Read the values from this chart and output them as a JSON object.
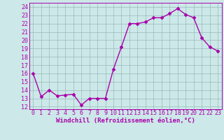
{
  "x": [
    0,
    1,
    2,
    3,
    4,
    5,
    6,
    7,
    8,
    9,
    10,
    11,
    12,
    13,
    14,
    15,
    16,
    17,
    18,
    19,
    20,
    21,
    22,
    23
  ],
  "y": [
    16.0,
    13.2,
    14.0,
    13.3,
    13.4,
    13.5,
    12.2,
    13.0,
    13.0,
    13.0,
    16.5,
    19.2,
    22.0,
    22.0,
    22.2,
    22.7,
    22.7,
    23.2,
    23.8,
    23.1,
    22.7,
    20.3,
    19.2,
    18.7
  ],
  "line_color": "#aa00aa",
  "marker": "D",
  "marker_size": 2.5,
  "bg_color": "#cce8e8",
  "grid_color": "#99bbbb",
  "xlabel": "Windchill (Refroidissement éolien,°C)",
  "xlabel_fontsize": 6.5,
  "yticks": [
    12,
    13,
    14,
    15,
    16,
    17,
    18,
    19,
    20,
    21,
    22,
    23,
    24
  ],
  "xlim": [
    -0.5,
    23.5
  ],
  "ylim": [
    11.7,
    24.5
  ],
  "tick_fontsize": 6.0,
  "line_width": 1.0
}
